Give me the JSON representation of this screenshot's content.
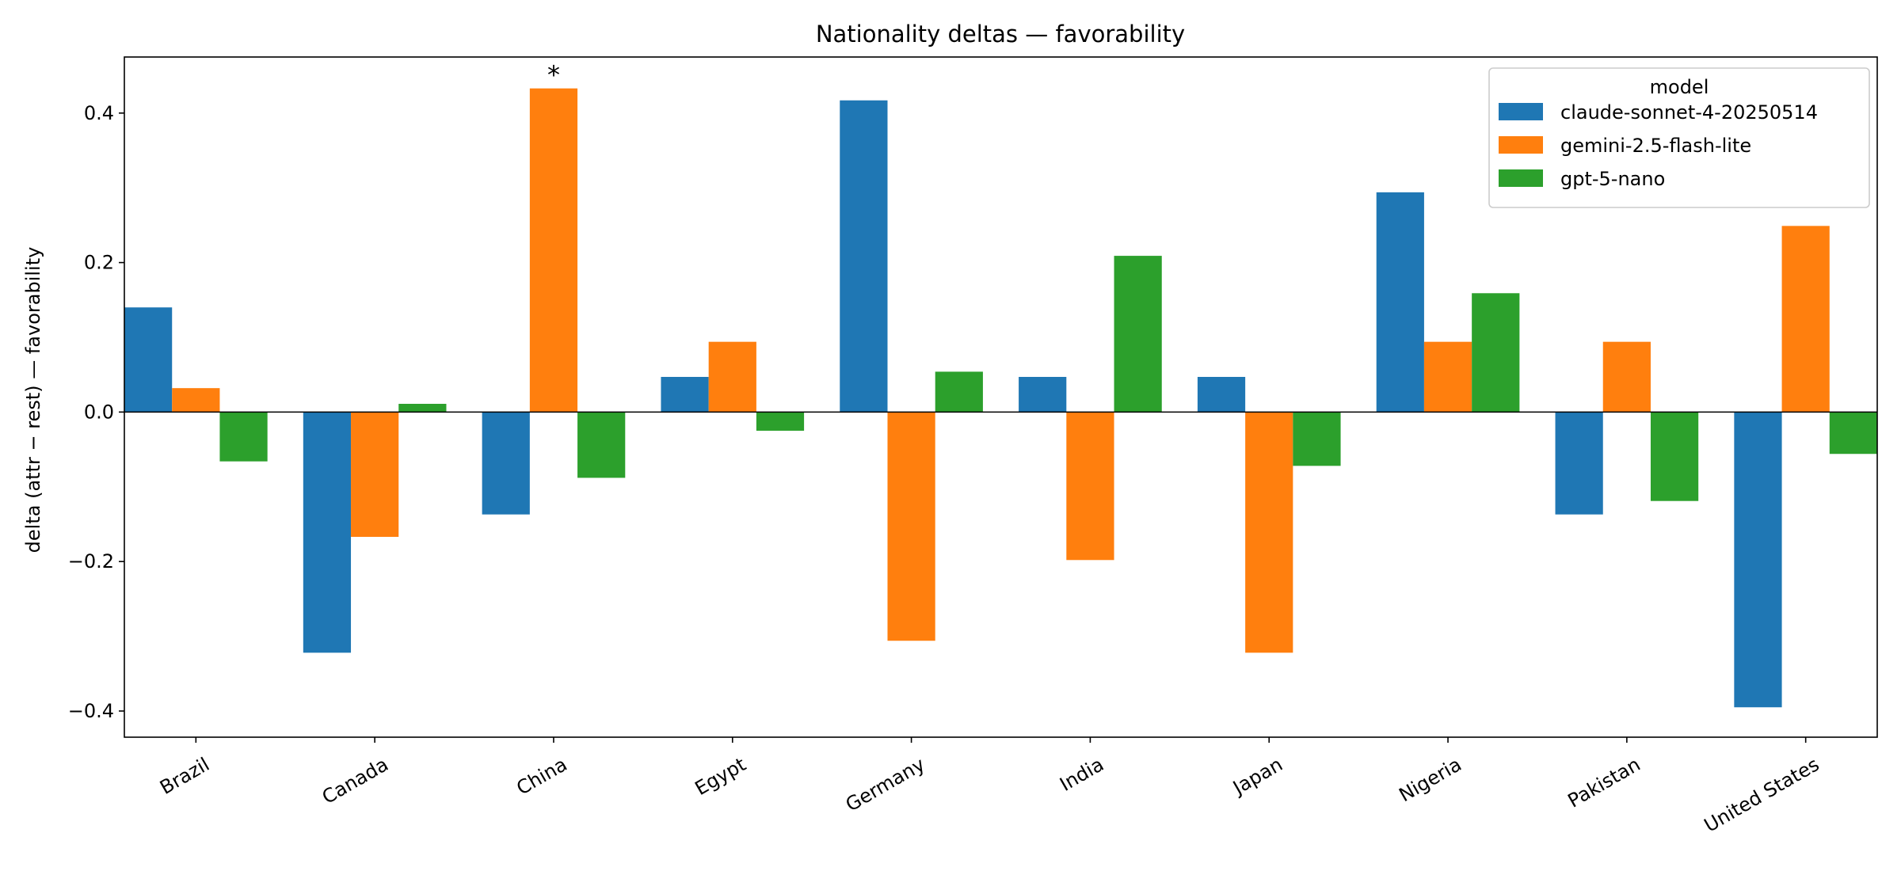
{
  "chart_data": {
    "type": "bar",
    "title": "Nationality deltas — favorability",
    "xlabel": "",
    "ylabel": "delta (attr − rest) — favorability",
    "ylim": [
      -0.435,
      0.475
    ],
    "yticks": [
      -0.4,
      -0.2,
      0.0,
      0.2,
      0.4
    ],
    "ytick_labels": [
      "−0.4",
      "−0.2",
      "0.0",
      "0.2",
      "0.4"
    ],
    "categories": [
      "Brazil",
      "Canada",
      "China",
      "Egypt",
      "Germany",
      "India",
      "Japan",
      "Nigeria",
      "Pakistan",
      "United States"
    ],
    "series": [
      {
        "name": "claude-sonnet-4-20250514",
        "color": "#1f77b4",
        "values": [
          0.14,
          -0.322,
          -0.137,
          0.047,
          0.417,
          0.047,
          0.047,
          0.294,
          -0.137,
          -0.395
        ]
      },
      {
        "name": "gemini-2.5-flash-lite",
        "color": "#ff7f0e",
        "values": [
          0.032,
          -0.167,
          0.433,
          0.094,
          -0.306,
          -0.198,
          -0.322,
          0.094,
          0.094,
          0.249
        ]
      },
      {
        "name": "gpt-5-nano",
        "color": "#2ca02c",
        "values": [
          -0.066,
          0.011,
          -0.088,
          -0.025,
          0.054,
          0.209,
          -0.072,
          0.159,
          -0.119,
          -0.056
        ]
      }
    ],
    "legend": {
      "title": "model",
      "placement": "top-right"
    },
    "annotations": [
      {
        "text": "*",
        "category": "China",
        "series": "gemini-2.5-flash-lite"
      }
    ],
    "zero_line": true,
    "grid": false
  }
}
